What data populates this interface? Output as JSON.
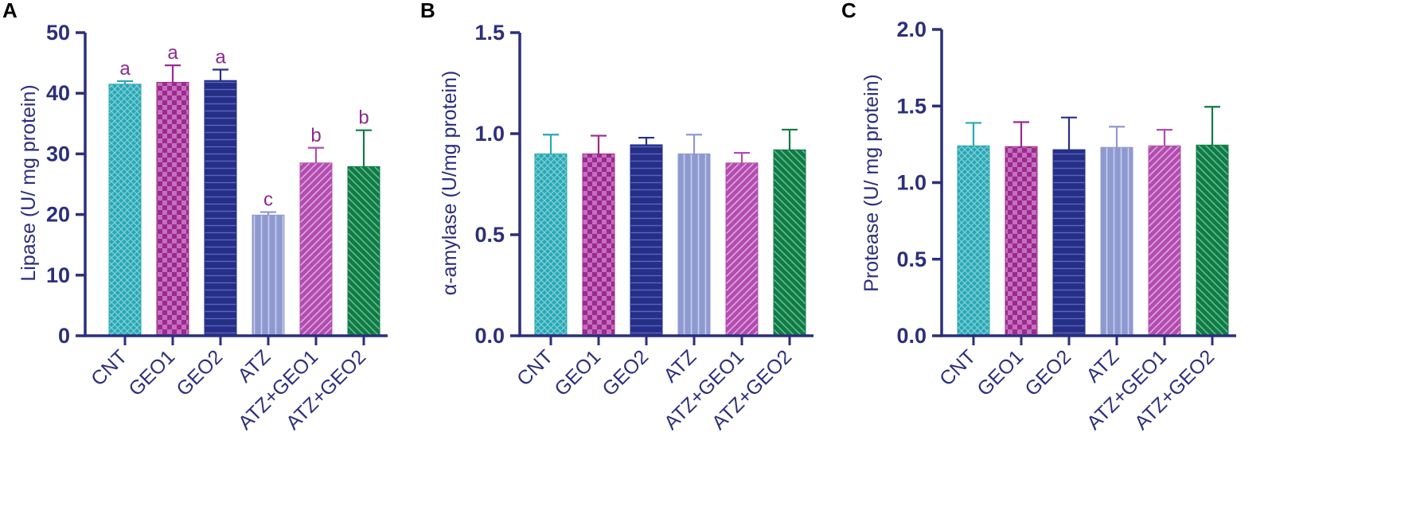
{
  "colors": {
    "axis": "#2b2f7a",
    "letters": "#8c2a8c",
    "series": {
      "CNT": "#2aa7b3",
      "GEO1": "#9b2a8f",
      "GEO2": "#262f86",
      "ATZ": "#8e99cf",
      "ATZ+GEO1": "#b24db0",
      "ATZ+GEO2": "#117a46"
    }
  },
  "chart_data": [
    {
      "panel": "A",
      "type": "bar",
      "ylabel": "Lipase (U/ mg protein)",
      "ylim": [
        0,
        50
      ],
      "yticks": [
        "0",
        "10",
        "20",
        "30",
        "40",
        "50"
      ],
      "categories": [
        "CNT",
        "GEO1",
        "GEO2",
        "ATZ",
        "ATZ+GEO1",
        "ATZ+GEO2"
      ],
      "values": [
        41.5,
        41.8,
        42.1,
        19.9,
        28.5,
        27.9
      ],
      "errors": [
        0.5,
        2.8,
        1.8,
        0.5,
        2.5,
        6.0
      ],
      "letters": [
        "a",
        "a",
        "a",
        "c",
        "b",
        "b"
      ]
    },
    {
      "panel": "B",
      "type": "bar",
      "ylabel": "α-amylase (U/mg protein)",
      "ylim": [
        0,
        1.5
      ],
      "yticks": [
        "0.0",
        "0.5",
        "1.0",
        "1.5"
      ],
      "categories": [
        "CNT",
        "GEO1",
        "GEO2",
        "ATZ",
        "ATZ+GEO1",
        "ATZ+GEO2"
      ],
      "values": [
        0.9,
        0.9,
        0.945,
        0.9,
        0.855,
        0.92
      ],
      "errors": [
        0.095,
        0.09,
        0.035,
        0.095,
        0.05,
        0.1
      ],
      "letters": []
    },
    {
      "panel": "C",
      "type": "bar",
      "ylabel": "Protease (U/ mg protein)",
      "ylim": [
        0,
        2.0
      ],
      "yticks": [
        "0.0",
        "0.5",
        "1.0",
        "1.5",
        "2.0"
      ],
      "categories": [
        "CNT",
        "GEO1",
        "GEO2",
        "ATZ",
        "ATZ+GEO1",
        "ATZ+GEO2"
      ],
      "values": [
        1.24,
        1.235,
        1.215,
        1.23,
        1.24,
        1.245
      ],
      "errors": [
        0.15,
        0.16,
        0.21,
        0.135,
        0.105,
        0.25
      ],
      "letters": []
    }
  ]
}
